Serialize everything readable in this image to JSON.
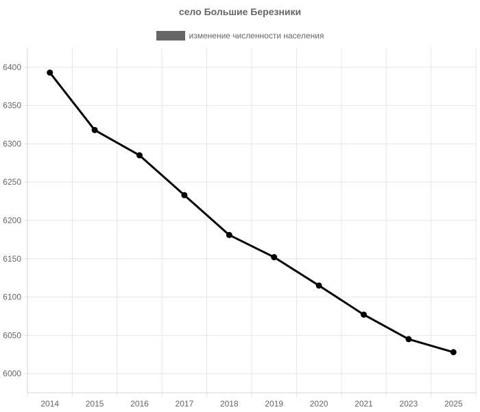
{
  "chart_data": {
    "type": "line",
    "title": "село Большие Березники",
    "categories": [
      "2014",
      "2015",
      "2016",
      "2017",
      "2018",
      "2019",
      "2020",
      "2021",
      "2023",
      "2025"
    ],
    "series": [
      {
        "name": "изменение численности населения",
        "values": [
          6393,
          6318,
          6285,
          6233,
          6181,
          6152,
          6115,
          6077,
          6045,
          6028
        ]
      }
    ],
    "y_ticks": [
      6000,
      6050,
      6100,
      6150,
      6200,
      6250,
      6300,
      6350,
      6400
    ],
    "ylim": [
      5975,
      6425
    ],
    "grid": true,
    "legend_position": "top",
    "colors": {
      "line": "#000000",
      "legend_swatch": "#666666",
      "grid": "#e6e6e6",
      "text": "#666666"
    }
  }
}
